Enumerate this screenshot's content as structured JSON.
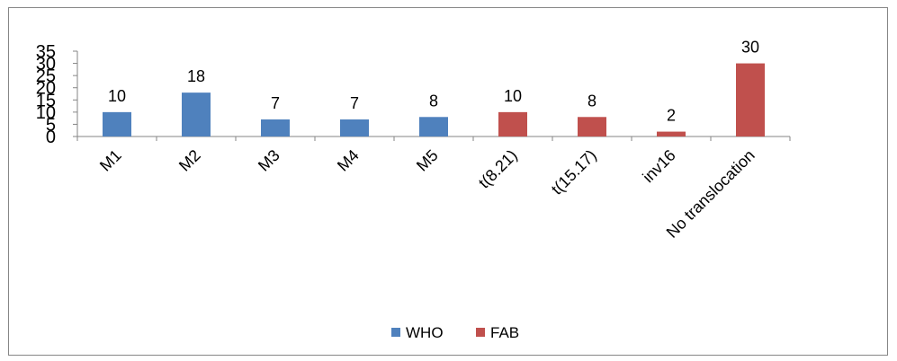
{
  "chart_data": {
    "type": "bar",
    "title": "",
    "xlabel": "",
    "ylabel": "",
    "ylim": [
      0,
      35
    ],
    "yticks": [
      0,
      5,
      10,
      15,
      20,
      25,
      30,
      35
    ],
    "ytick_labels": [
      "0",
      "5",
      "10",
      "15",
      "20",
      "25",
      "30",
      "35"
    ],
    "categories": [
      "M1",
      "M2",
      "M3",
      "M4",
      "M5",
      "t(8.21)",
      "t(15.17)",
      "inv16",
      "No translocation"
    ],
    "series": [
      {
        "name": "WHO",
        "color": "#4F81BD",
        "values": [
          10,
          18,
          7,
          7,
          8,
          null,
          null,
          null,
          null
        ]
      },
      {
        "name": "FAB",
        "color": "#C0504D",
        "values": [
          null,
          null,
          null,
          null,
          null,
          10,
          8,
          2,
          30
        ]
      }
    ],
    "data_labels": [
      "10",
      "18",
      "7",
      "7",
      "8",
      "10",
      "8",
      "2",
      "30"
    ],
    "grid": false,
    "legend_position": "bottom"
  }
}
